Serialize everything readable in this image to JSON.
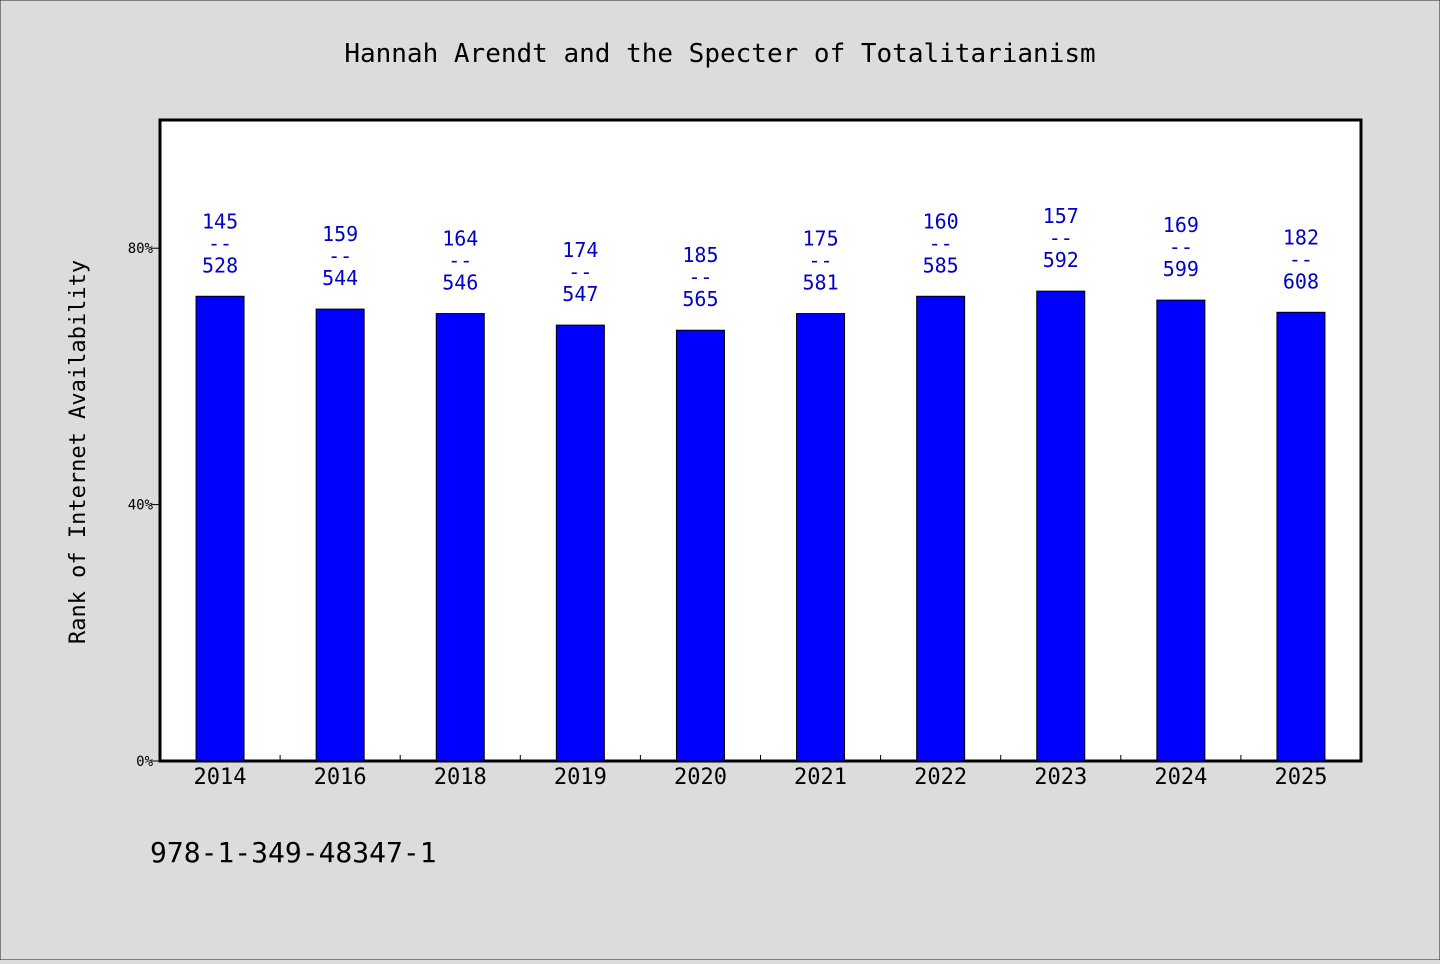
{
  "chart_data": {
    "type": "bar",
    "title": "Hannah Arendt and the Specter of Totalitarianism",
    "ylabel": "Rank of Internet Availability",
    "xlabel": "",
    "footer": "978-1-349-48347-1",
    "categories": [
      "2014",
      "2016",
      "2018",
      "2019",
      "2020",
      "2021",
      "2022",
      "2023",
      "2024",
      "2025"
    ],
    "values": [
      72.5,
      70.5,
      69.8,
      68.0,
      67.2,
      69.8,
      72.5,
      73.3,
      71.9,
      70.0
    ],
    "data_labels": [
      {
        "top": "145",
        "sep": "--",
        "bottom": "528"
      },
      {
        "top": "159",
        "sep": "--",
        "bottom": "544"
      },
      {
        "top": "164",
        "sep": "--",
        "bottom": "546"
      },
      {
        "top": "174",
        "sep": "--",
        "bottom": "547"
      },
      {
        "top": "185",
        "sep": "--",
        "bottom": "565"
      },
      {
        "top": "175",
        "sep": "--",
        "bottom": "581"
      },
      {
        "top": "160",
        "sep": "--",
        "bottom": "585"
      },
      {
        "top": "157",
        "sep": "--",
        "bottom": "592"
      },
      {
        "top": "169",
        "sep": "--",
        "bottom": "599"
      },
      {
        "top": "182",
        "sep": "--",
        "bottom": "608"
      }
    ],
    "yticks": [
      {
        "value": 0,
        "label": "0%"
      },
      {
        "value": 40,
        "label": "40%"
      },
      {
        "value": 80,
        "label": "80%"
      }
    ],
    "ylim": [
      0,
      100
    ],
    "grid": false,
    "colors": {
      "bar": "#0000ff",
      "label": "#0000cc",
      "background": "#dcdcdc",
      "plot_background": "#ffffff"
    }
  }
}
